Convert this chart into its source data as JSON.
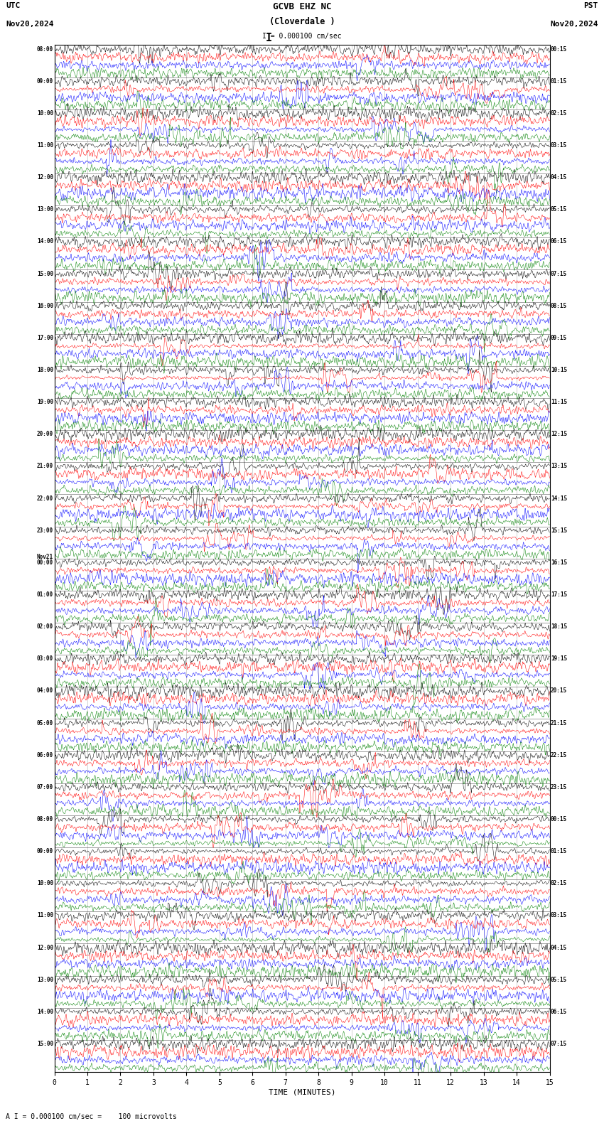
{
  "title_line1": "GCVB EHZ NC",
  "title_line2": "(Cloverdale )",
  "scale_label": "I = 0.000100 cm/sec",
  "utc_label": "UTC",
  "pst_label": "PST",
  "date_left": "Nov20,2024",
  "date_right": "Nov20,2024",
  "footer": "A I = 0.000100 cm/sec =    100 microvolts",
  "xlabel": "TIME (MINUTES)",
  "colors": [
    "black",
    "red",
    "blue",
    "green"
  ],
  "num_rows": 32,
  "traces_per_row": 4,
  "minutes_per_row": 15,
  "xlim": [
    0,
    15
  ],
  "xticks": [
    0,
    1,
    2,
    3,
    4,
    5,
    6,
    7,
    8,
    9,
    10,
    11,
    12,
    13,
    14,
    15
  ],
  "left_times": [
    "08:00",
    "09:00",
    "10:00",
    "11:00",
    "12:00",
    "13:00",
    "14:00",
    "15:00",
    "16:00",
    "17:00",
    "18:00",
    "19:00",
    "20:00",
    "21:00",
    "22:00",
    "23:00",
    "Nov21\n00:00",
    "01:00",
    "02:00",
    "03:00",
    "04:00",
    "05:00",
    "06:00",
    "07:00",
    "08:00",
    "09:00",
    "10:00",
    "11:00",
    "12:00",
    "13:00",
    "14:00",
    "15:00"
  ],
  "right_times": [
    "00:15",
    "01:15",
    "02:15",
    "03:15",
    "04:15",
    "05:15",
    "06:15",
    "07:15",
    "08:15",
    "09:15",
    "10:15",
    "11:15",
    "12:15",
    "13:15",
    "14:15",
    "15:15",
    "16:15",
    "17:15",
    "18:15",
    "19:15",
    "20:15",
    "21:15",
    "22:15",
    "23:15",
    "00:15",
    "01:15",
    "02:15",
    "03:15",
    "04:15",
    "05:15",
    "06:15",
    "07:15"
  ],
  "background_color": "white",
  "fig_width": 8.5,
  "fig_height": 15.84
}
